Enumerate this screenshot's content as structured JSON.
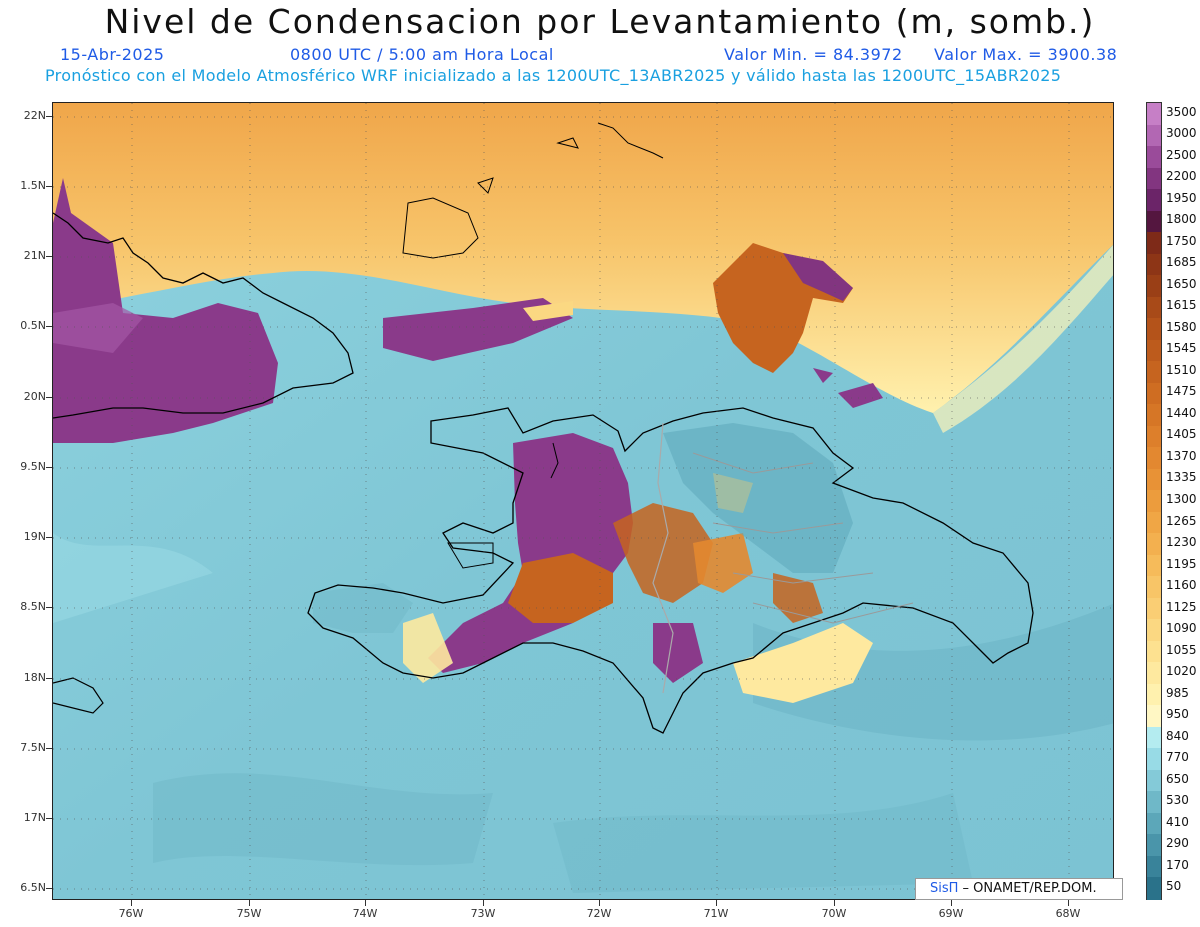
{
  "title": "Nivel de Condensacion por Levantamiento (m, somb.)",
  "date": "15-Abr-2025",
  "time": "0800 UTC / 5:00 am Hora Local",
  "min_label": "Valor Min. = 84.3972",
  "max_label": "Valor Max. = 3900.38",
  "forecast_text": "Pronóstico con el Modelo Atmosférico WRF inicializado a las 1200UTC_13ABR2025 y válido hasta las  1200UTC_15ABR2025",
  "lat_labels": [
    "22N",
    "1.5N",
    "21N",
    "0.5N",
    "20N",
    "9.5N",
    "19N",
    "8.5N",
    "18N",
    "7.5N",
    "17N",
    "6.5N"
  ],
  "lon_labels": [
    "76W",
    "75W",
    "74W",
    "73W",
    "72W",
    "71W",
    "70W",
    "69W",
    "68W"
  ],
  "colorbar": {
    "labels": [
      "3500",
      "3000",
      "2500",
      "2200",
      "1950",
      "1800",
      "1750",
      "1685",
      "1650",
      "1615",
      "1580",
      "1545",
      "1510",
      "1475",
      "1440",
      "1405",
      "1370",
      "1335",
      "1300",
      "1265",
      "1230",
      "1195",
      "1160",
      "1125",
      "1090",
      "1055",
      "1020",
      "985",
      "950",
      "840",
      "770",
      "650",
      "530",
      "410",
      "290",
      "170",
      "50"
    ],
    "colors": [
      "#c67fc6",
      "#b267b3",
      "#9a4b9a",
      "#823580",
      "#6b2468",
      "#54163f",
      "#7e2a18",
      "#8d3516",
      "#9a3f16",
      "#a84a18",
      "#b4531a",
      "#bd5b1c",
      "#c6641f",
      "#cf6d22",
      "#d67626",
      "#dd7f2b",
      "#e38830",
      "#e89236",
      "#ec9c3d",
      "#f0a645",
      "#f3b04f",
      "#f6bb5a",
      "#f8c567",
      "#face74",
      "#fbd882",
      "#fde190",
      "#fee99f",
      "#fff1ae",
      "#fff7c4",
      "#b4ecf0",
      "#98dbe6",
      "#84cad8",
      "#6fb8c8",
      "#5ca7b9",
      "#4a95aa",
      "#39839a",
      "#2a728a"
    ]
  },
  "credit": {
    "brand": "SisΠ",
    "text": " – ONAMET/REP.DOM."
  }
}
